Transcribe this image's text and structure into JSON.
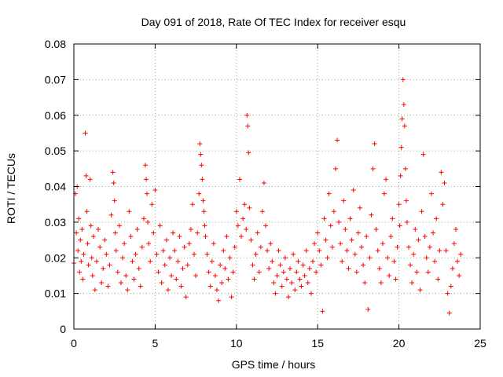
{
  "chart_data": {
    "type": "scatter",
    "title": "Day 091 of 2018, Rate Of TEC Index for receiver esqu",
    "xlabel": "GPS time / hours",
    "ylabel": "ROTI / TECUs",
    "xlim": [
      0,
      25
    ],
    "ylim": [
      0,
      0.08
    ],
    "x_ticks": [
      0,
      5,
      10,
      15,
      20,
      25
    ],
    "x_tick_labels": [
      "0",
      "5",
      "10",
      "15",
      "20",
      "25"
    ],
    "y_ticks": [
      0,
      0.01,
      0.02,
      0.03,
      0.04,
      0.05,
      0.06,
      0.07,
      0.08
    ],
    "y_tick_labels": [
      "0",
      "0.01",
      "0.02",
      "0.03",
      "0.04",
      "0.05",
      "0.06",
      "0.07",
      "0.08"
    ],
    "grid": true,
    "marker": "+",
    "color": "#ff0000",
    "series": [
      {
        "name": "ROTI",
        "x": [
          0.0,
          0.1,
          0.15,
          0.2,
          0.25,
          0.3,
          0.35,
          0.4,
          0.45,
          0.5,
          0.55,
          0.6,
          0.7,
          0.75,
          0.8,
          0.85,
          0.9,
          1.0,
          1.05,
          1.1,
          1.15,
          1.2,
          1.3,
          1.4,
          1.5,
          1.6,
          1.7,
          1.8,
          1.9,
          2.0,
          2.1,
          2.2,
          2.3,
          2.4,
          2.45,
          2.5,
          2.55,
          2.6,
          2.7,
          2.8,
          2.9,
          3.0,
          3.1,
          3.2,
          3.3,
          3.4,
          3.5,
          3.6,
          3.7,
          3.8,
          3.9,
          4.0,
          4.1,
          4.2,
          4.3,
          4.4,
          4.45,
          4.5,
          4.55,
          4.6,
          4.7,
          4.8,
          4.9,
          5.0,
          5.1,
          5.2,
          5.3,
          5.4,
          5.5,
          5.6,
          5.7,
          5.8,
          5.9,
          6.0,
          6.1,
          6.2,
          6.3,
          6.4,
          6.5,
          6.6,
          6.7,
          6.8,
          6.9,
          7.0,
          7.1,
          7.2,
          7.3,
          7.4,
          7.5,
          7.6,
          7.7,
          7.75,
          7.8,
          7.85,
          7.9,
          7.95,
          8.0,
          8.05,
          8.1,
          8.2,
          8.3,
          8.4,
          8.5,
          8.6,
          8.7,
          8.8,
          8.9,
          9.0,
          9.1,
          9.2,
          9.3,
          9.4,
          9.5,
          9.6,
          9.7,
          9.8,
          9.9,
          10.0,
          10.1,
          10.2,
          10.3,
          10.4,
          10.5,
          10.6,
          10.65,
          10.7,
          10.75,
          10.8,
          10.9,
          11.0,
          11.1,
          11.2,
          11.3,
          11.4,
          11.5,
          11.6,
          11.7,
          11.8,
          11.9,
          12.0,
          12.1,
          12.2,
          12.3,
          12.4,
          12.5,
          12.6,
          12.7,
          12.8,
          12.9,
          13.0,
          13.1,
          13.2,
          13.3,
          13.4,
          13.5,
          13.6,
          13.7,
          13.8,
          13.9,
          14.0,
          14.1,
          14.2,
          14.3,
          14.4,
          14.5,
          14.6,
          14.7,
          14.8,
          14.9,
          15.0,
          15.1,
          15.2,
          15.3,
          15.4,
          15.5,
          15.6,
          15.7,
          15.8,
          15.9,
          16.0,
          16.1,
          16.2,
          16.3,
          16.4,
          16.5,
          16.6,
          16.7,
          16.8,
          16.9,
          17.0,
          17.1,
          17.2,
          17.3,
          17.4,
          17.5,
          17.6,
          17.7,
          17.8,
          17.9,
          18.0,
          18.1,
          18.2,
          18.3,
          18.4,
          18.5,
          18.6,
          18.7,
          18.8,
          18.9,
          19.0,
          19.1,
          19.2,
          19.3,
          19.4,
          19.5,
          19.6,
          19.7,
          19.8,
          19.9,
          20.0,
          20.05,
          20.1,
          20.15,
          20.2,
          20.25,
          20.3,
          20.35,
          20.4,
          20.45,
          20.5,
          20.6,
          20.7,
          20.8,
          20.9,
          21.0,
          21.1,
          21.2,
          21.3,
          21.4,
          21.5,
          21.6,
          21.7,
          21.8,
          21.9,
          22.0,
          22.1,
          22.2,
          22.3,
          22.4,
          22.5,
          22.6,
          22.7,
          22.8,
          22.9,
          23.0,
          23.1,
          23.2,
          23.3,
          23.4,
          23.5,
          23.6,
          23.7,
          23.8
        ],
        "y": [
          0.0185,
          0.038,
          0.027,
          0.04,
          0.022,
          0.031,
          0.016,
          0.025,
          0.019,
          0.028,
          0.014,
          0.021,
          0.055,
          0.043,
          0.033,
          0.024,
          0.018,
          0.042,
          0.029,
          0.02,
          0.015,
          0.026,
          0.011,
          0.019,
          0.028,
          0.023,
          0.013,
          0.017,
          0.025,
          0.021,
          0.012,
          0.018,
          0.032,
          0.044,
          0.041,
          0.036,
          0.027,
          0.022,
          0.016,
          0.029,
          0.013,
          0.02,
          0.024,
          0.015,
          0.011,
          0.033,
          0.026,
          0.019,
          0.014,
          0.021,
          0.028,
          0.017,
          0.012,
          0.023,
          0.031,
          0.046,
          0.042,
          0.038,
          0.03,
          0.024,
          0.019,
          0.035,
          0.027,
          0.039,
          0.021,
          0.016,
          0.029,
          0.013,
          0.022,
          0.018,
          0.025,
          0.011,
          0.02,
          0.015,
          0.027,
          0.022,
          0.014,
          0.019,
          0.026,
          0.012,
          0.017,
          0.023,
          0.009,
          0.018,
          0.024,
          0.028,
          0.035,
          0.021,
          0.015,
          0.027,
          0.038,
          0.052,
          0.049,
          0.046,
          0.042,
          0.036,
          0.033,
          0.029,
          0.026,
          0.021,
          0.016,
          0.012,
          0.019,
          0.024,
          0.015,
          0.011,
          0.008,
          0.018,
          0.013,
          0.022,
          0.017,
          0.026,
          0.014,
          0.02,
          0.009,
          0.016,
          0.023,
          0.033,
          0.029,
          0.042,
          0.026,
          0.031,
          0.035,
          0.028,
          0.06,
          0.057,
          0.0495,
          0.034,
          0.025,
          0.018,
          0.014,
          0.021,
          0.027,
          0.016,
          0.023,
          0.033,
          0.041,
          0.029,
          0.022,
          0.017,
          0.024,
          0.019,
          0.013,
          0.01,
          0.015,
          0.022,
          0.018,
          0.012,
          0.016,
          0.02,
          0.014,
          0.009,
          0.017,
          0.013,
          0.021,
          0.011,
          0.016,
          0.019,
          0.014,
          0.012,
          0.018,
          0.015,
          0.022,
          0.013,
          0.017,
          0.01,
          0.019,
          0.024,
          0.016,
          0.027,
          0.022,
          0.018,
          0.005,
          0.031,
          0.025,
          0.02,
          0.038,
          0.029,
          0.023,
          0.033,
          0.045,
          0.053,
          0.03,
          0.024,
          0.019,
          0.036,
          0.028,
          0.022,
          0.017,
          0.031,
          0.025,
          0.039,
          0.021,
          0.016,
          0.027,
          0.034,
          0.023,
          0.018,
          0.013,
          0.026,
          0.0055,
          0.02,
          0.032,
          0.045,
          0.052,
          0.028,
          0.022,
          0.017,
          0.013,
          0.024,
          0.038,
          0.042,
          0.02,
          0.015,
          0.026,
          0.031,
          0.019,
          0.014,
          0.023,
          0.035,
          0.029,
          0.043,
          0.051,
          0.059,
          0.07,
          0.063,
          0.057,
          0.045,
          0.036,
          0.03,
          0.023,
          0.018,
          0.013,
          0.021,
          0.028,
          0.016,
          0.025,
          0.011,
          0.033,
          0.049,
          0.026,
          0.02,
          0.016,
          0.023,
          0.038,
          0.027,
          0.019,
          0.031,
          0.014,
          0.022,
          0.044,
          0.035,
          0.041,
          0.022,
          0.01,
          0.0045,
          0.012,
          0.017,
          0.024,
          0.028,
          0.019,
          0.015,
          0.021
        ]
      }
    ]
  }
}
